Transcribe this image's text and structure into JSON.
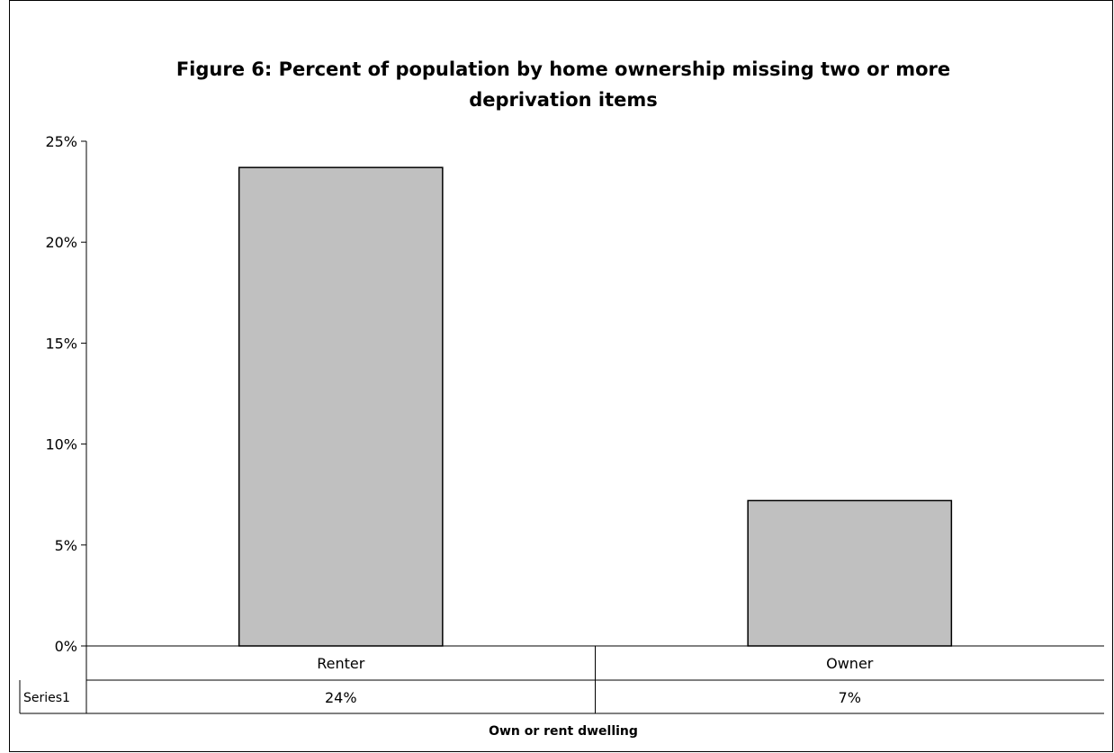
{
  "chart_data": {
    "type": "bar",
    "title_lines": [
      "Figure 6: Percent of population by home ownership missing two or more",
      "deprivation items"
    ],
    "categories": [
      "Renter",
      "Owner"
    ],
    "series": [
      {
        "name": "Series1",
        "values": [
          0.237,
          0.072
        ],
        "value_labels": [
          "24%",
          "7%"
        ],
        "color": "#c0c0c0"
      }
    ],
    "xlabel": "Own or rent dwelling",
    "ylabel": "",
    "ylim": [
      0,
      0.25
    ],
    "yticks": [
      0,
      0.05,
      0.1,
      0.15,
      0.2,
      0.25
    ],
    "ytick_labels": [
      "0%",
      "5%",
      "10%",
      "15%",
      "20%",
      "25%"
    ],
    "grid": false,
    "data_table": true
  }
}
